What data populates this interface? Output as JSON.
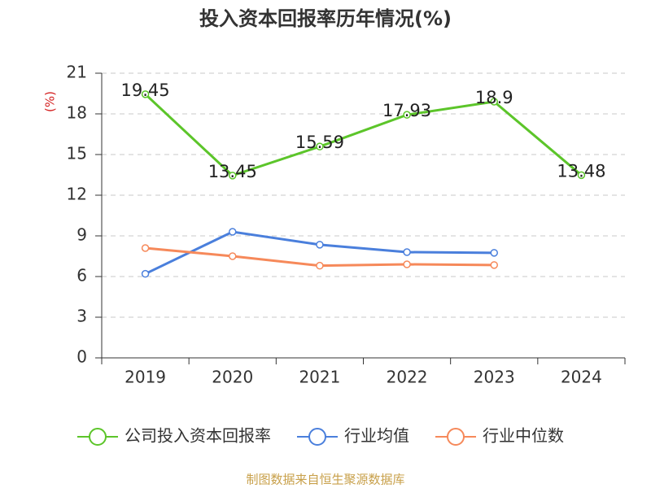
{
  "chart_data": {
    "type": "line",
    "title": "投入资本回报率历年情况(%)",
    "y_label": "(%)",
    "categories": [
      "2019",
      "2020",
      "2021",
      "2022",
      "2023",
      "2024"
    ],
    "series": [
      {
        "name": "公司投入资本回报率",
        "color": "#5cc52a",
        "values": [
          19.45,
          13.45,
          15.59,
          17.93,
          18.9,
          13.48
        ],
        "data_labels": true
      },
      {
        "name": "行业均值",
        "color": "#4a7fdc",
        "values": [
          6.2,
          9.3,
          8.35,
          7.8,
          7.75,
          null
        ]
      },
      {
        "name": "行业中位数",
        "color": "#f6895a",
        "values": [
          8.1,
          7.5,
          6.8,
          6.9,
          6.85,
          null
        ]
      }
    ],
    "ylim": [
      0,
      21
    ],
    "yticks": [
      0,
      3,
      6,
      9,
      12,
      15,
      18,
      21
    ],
    "grid": true,
    "source": "制图数据来自恒生聚源数据库"
  }
}
